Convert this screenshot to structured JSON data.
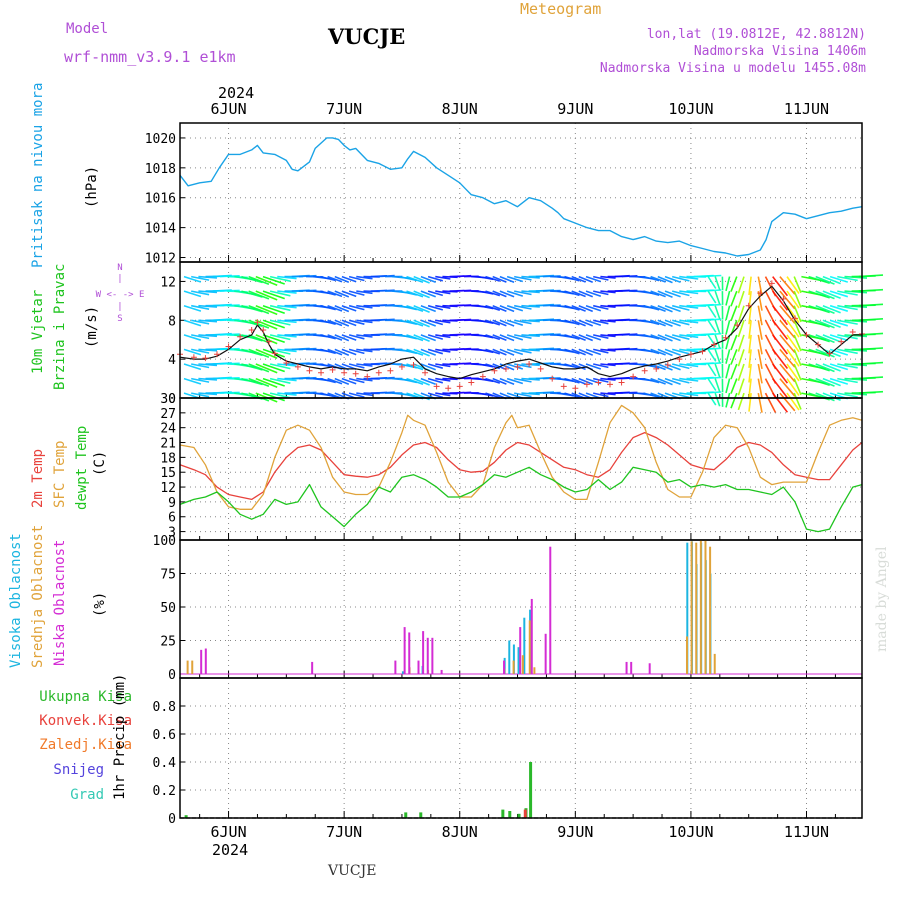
{
  "header": {
    "model_label": "Model",
    "model_value": "wrf-nmm_v3.9.1 e1km",
    "station": "VUCJE",
    "meteogram_label": "Meteogram",
    "lonlat": "lon,lat (19.0812E, 42.8812N)",
    "altitude": "Nadmorska Visina 1406m",
    "model_altitude": "Nadmorska Visina u modelu 1455.08m",
    "year": "2024",
    "footer_station": "VUCJE",
    "credit": "made by Angel"
  },
  "colors": {
    "pressure": "#1aa3e6",
    "temp2m": "#e8423c",
    "sfc": "#e0a33a",
    "dew": "#1fc41f",
    "high_cloud": "#1cb5e0",
    "mid_cloud": "#e0a33a",
    "low_cloud": "#d42cd4",
    "total_rain": "#2ab82a",
    "conv_rain": "#e8423c",
    "frozen": "#f07a2a",
    "snow": "#5544dd",
    "hail": "#34c9b4",
    "wind_speed": "#111111",
    "wind_gust": "#e8423c",
    "label_purple": "#b04fd6"
  },
  "time_axis": {
    "day_labels": [
      "6JUN",
      "7JUN",
      "8JUN",
      "9JUN",
      "10JUN",
      "11JUN"
    ],
    "day_positions": [
      1,
      2,
      3,
      4,
      5,
      6
    ],
    "x_range": [
      0.58,
      6.48
    ]
  },
  "panel_labels": {
    "pressure": [
      "Pritisak na nivou mora",
      "(hPa)"
    ],
    "wind": [
      "10m Vjetar",
      "Brzina i Pravac",
      "(m/s)"
    ],
    "compass": [
      "N",
      "|",
      "W <- -> E",
      "|",
      "S"
    ],
    "temp": [
      "2m Temp",
      "SFC Temp",
      "dewpt Temp",
      "(C)"
    ],
    "cloud": [
      "Visoka Oblacnost",
      "Srednja Oblacnost",
      "Niska Oblacnost",
      "(%)"
    ],
    "precip": [
      "Ukupna Kisa",
      "Konvek.Kisa",
      "Zaledj.Kisa",
      "Snijeg",
      "Grad",
      "1hr Precip (mm)"
    ]
  },
  "chart_data": [
    {
      "type": "line",
      "panel": "pressure",
      "ylabel": "(hPa)",
      "ylim": [
        1011.7,
        1021
      ],
      "yticks": [
        1012,
        1014,
        1016,
        1018,
        1020
      ],
      "grid": true,
      "series": [
        {
          "name": "Pritisak na nivou mora",
          "x": [
            0.58,
            0.65,
            0.75,
            0.85,
            0.92,
            1.0,
            1.1,
            1.2,
            1.25,
            1.3,
            1.4,
            1.5,
            1.55,
            1.6,
            1.7,
            1.75,
            1.85,
            1.9,
            1.95,
            2.0,
            2.05,
            2.1,
            2.2,
            2.3,
            2.4,
            2.5,
            2.55,
            2.6,
            2.7,
            2.8,
            2.9,
            3.0,
            3.05,
            3.1,
            3.2,
            3.3,
            3.4,
            3.5,
            3.6,
            3.7,
            3.8,
            3.85,
            3.9,
            4.0,
            4.1,
            4.2,
            4.3,
            4.4,
            4.5,
            4.6,
            4.7,
            4.8,
            4.9,
            5.0,
            5.1,
            5.2,
            5.3,
            5.4,
            5.5,
            5.6,
            5.65,
            5.7,
            5.8,
            5.9,
            6.0,
            6.1,
            6.2,
            6.3,
            6.4,
            6.48
          ],
          "values": [
            1017.5,
            1016.8,
            1017.0,
            1017.1,
            1018.0,
            1018.9,
            1018.9,
            1019.2,
            1019.5,
            1019.0,
            1018.9,
            1018.5,
            1017.9,
            1017.8,
            1018.4,
            1019.3,
            1020.0,
            1020.0,
            1019.9,
            1019.5,
            1019.2,
            1019.3,
            1018.5,
            1018.3,
            1017.9,
            1018.0,
            1018.6,
            1019.1,
            1018.7,
            1018.0,
            1017.5,
            1017.0,
            1016.6,
            1016.2,
            1016.0,
            1015.6,
            1015.8,
            1015.4,
            1016.0,
            1015.8,
            1015.3,
            1015.0,
            1014.6,
            1014.3,
            1014.0,
            1013.8,
            1013.8,
            1013.4,
            1013.2,
            1013.4,
            1013.1,
            1013.0,
            1013.1,
            1012.8,
            1012.6,
            1012.4,
            1012.3,
            1012.1,
            1012.2,
            1012.5,
            1013.2,
            1014.4,
            1015.0,
            1014.9,
            1014.6,
            1014.8,
            1015.0,
            1015.1,
            1015.3,
            1015.4
          ]
        }
      ]
    },
    {
      "type": "line",
      "panel": "wind",
      "ylabel": "(m/s)",
      "ylim": [
        0,
        14
      ],
      "yticks": [
        0,
        4,
        8,
        12
      ],
      "grid": true,
      "series": [
        {
          "name": "speed",
          "x": [
            0.58,
            0.7,
            0.8,
            0.9,
            1.0,
            1.1,
            1.2,
            1.25,
            1.3,
            1.35,
            1.4,
            1.5,
            1.6,
            1.7,
            1.8,
            1.9,
            2.0,
            2.1,
            2.2,
            2.3,
            2.4,
            2.5,
            2.6,
            2.7,
            2.8,
            2.9,
            3.0,
            3.1,
            3.2,
            3.3,
            3.4,
            3.5,
            3.6,
            3.7,
            3.8,
            3.9,
            4.0,
            4.1,
            4.2,
            4.3,
            4.4,
            4.5,
            4.6,
            4.7,
            4.8,
            4.9,
            5.0,
            5.1,
            5.2,
            5.3,
            5.4,
            5.5,
            5.6,
            5.7,
            5.8,
            5.9,
            6.0,
            6.1,
            6.2,
            6.3,
            6.4,
            6.48
          ],
          "values": [
            4.2,
            4.0,
            4.0,
            4.3,
            5.0,
            6.0,
            6.5,
            7.5,
            6.8,
            5.5,
            4.5,
            3.8,
            3.5,
            3.2,
            3.0,
            3.2,
            3.0,
            3.0,
            2.8,
            3.2,
            3.5,
            4.0,
            4.2,
            3.0,
            2.5,
            2.2,
            2.0,
            2.4,
            2.7,
            3.0,
            3.5,
            3.8,
            4.0,
            3.6,
            3.2,
            3.0,
            3.0,
            3.2,
            2.5,
            2.2,
            2.5,
            3.0,
            3.3,
            3.5,
            3.8,
            4.2,
            4.5,
            4.8,
            5.5,
            6.0,
            7.2,
            9.2,
            10.5,
            11.5,
            10.0,
            8.0,
            6.5,
            5.5,
            4.5,
            5.5,
            6.5,
            6.5
          ]
        },
        {
          "name": "gust",
          "x": [
            0.58,
            0.7,
            0.8,
            0.9,
            1.0,
            1.1,
            1.2,
            1.25,
            1.3,
            1.35,
            1.4,
            1.5,
            1.6,
            1.7,
            1.8,
            1.9,
            2.0,
            2.1,
            2.2,
            2.3,
            2.4,
            2.5,
            2.6,
            2.7,
            2.8,
            2.9,
            3.0,
            3.1,
            3.2,
            3.3,
            3.4,
            3.5,
            3.6,
            3.7,
            3.8,
            3.9,
            4.0,
            4.1,
            4.2,
            4.3,
            4.4,
            4.5,
            4.6,
            4.7,
            4.8,
            4.9,
            5.0,
            5.1,
            5.2,
            5.3,
            5.4,
            5.5,
            5.6,
            5.7,
            5.8,
            5.9,
            6.0,
            6.1,
            6.2,
            6.3,
            6.4,
            6.48
          ],
          "values": [
            4.5,
            4.2,
            4.1,
            4.5,
            5.3,
            6.3,
            7.0,
            7.8,
            7.0,
            5.8,
            4.6,
            3.6,
            3.2,
            2.8,
            2.6,
            2.9,
            2.6,
            2.5,
            2.2,
            2.6,
            2.8,
            3.2,
            3.4,
            2.6,
            1.2,
            1.0,
            1.2,
            1.6,
            2.2,
            2.8,
            3.0,
            3.2,
            3.5,
            3.0,
            2.0,
            1.2,
            1.0,
            1.4,
            1.6,
            1.4,
            1.6,
            2.2,
            2.8,
            3.0,
            3.4,
            4.0,
            4.5,
            4.8,
            5.5,
            6.2,
            7.5,
            9.5,
            10.8,
            11.8,
            10.2,
            8.2,
            6.5,
            5.5,
            4.6,
            5.8,
            6.8,
            6.6
          ]
        }
      ]
    },
    {
      "type": "line",
      "panel": "temperature",
      "ylabel": "(C)",
      "ylim": [
        1.3,
        30
      ],
      "yticks": [
        3,
        6,
        9,
        12,
        15,
        18,
        21,
        24,
        27,
        30
      ],
      "grid": true,
      "series": [
        {
          "name": "2m Temp",
          "x": [
            0.58,
            0.7,
            0.8,
            0.9,
            1.0,
            1.1,
            1.2,
            1.3,
            1.4,
            1.5,
            1.6,
            1.7,
            1.8,
            1.9,
            2.0,
            2.1,
            2.2,
            2.3,
            2.4,
            2.5,
            2.6,
            2.7,
            2.8,
            2.9,
            3.0,
            3.1,
            3.2,
            3.3,
            3.4,
            3.5,
            3.6,
            3.7,
            3.8,
            3.9,
            4.0,
            4.1,
            4.2,
            4.3,
            4.4,
            4.5,
            4.6,
            4.7,
            4.8,
            4.9,
            5.0,
            5.1,
            5.2,
            5.3,
            5.4,
            5.5,
            5.6,
            5.7,
            5.8,
            5.9,
            6.0,
            6.1,
            6.2,
            6.3,
            6.4,
            6.48
          ],
          "values": [
            16.5,
            15.5,
            14.5,
            12.0,
            10.5,
            10.0,
            9.5,
            11.0,
            15.0,
            18.0,
            20.0,
            20.5,
            19.5,
            17.0,
            14.5,
            14.2,
            14.0,
            14.5,
            16.0,
            18.5,
            20.5,
            21.0,
            20.0,
            17.5,
            15.5,
            15.0,
            15.2,
            17.0,
            19.5,
            21.0,
            20.5,
            19.0,
            17.5,
            16.0,
            15.5,
            14.5,
            14.0,
            15.5,
            19.0,
            22.0,
            23.0,
            22.0,
            20.5,
            18.5,
            16.5,
            15.8,
            15.5,
            17.5,
            20.0,
            21.0,
            20.5,
            19.0,
            16.5,
            14.5,
            14.0,
            13.5,
            13.5,
            16.5,
            19.5,
            21.0
          ]
        },
        {
          "name": "SFC Temp",
          "x": [
            0.58,
            0.7,
            0.8,
            0.9,
            1.0,
            1.1,
            1.2,
            1.3,
            1.4,
            1.5,
            1.6,
            1.7,
            1.8,
            1.9,
            2.0,
            2.1,
            2.2,
            2.3,
            2.4,
            2.5,
            2.55,
            2.6,
            2.7,
            2.8,
            2.9,
            3.0,
            3.1,
            3.2,
            3.3,
            3.4,
            3.45,
            3.5,
            3.6,
            3.7,
            3.8,
            3.9,
            4.0,
            4.1,
            4.2,
            4.3,
            4.4,
            4.5,
            4.6,
            4.7,
            4.8,
            4.9,
            5.0,
            5.1,
            5.2,
            5.3,
            5.4,
            5.5,
            5.6,
            5.7,
            5.8,
            5.9,
            6.0,
            6.1,
            6.2,
            6.3,
            6.4,
            6.48
          ],
          "values": [
            20.5,
            20.0,
            16.5,
            11.0,
            8.0,
            7.5,
            7.5,
            10.5,
            18.0,
            23.5,
            24.5,
            23.5,
            20.0,
            14.0,
            11.0,
            10.5,
            10.5,
            12.0,
            17.0,
            23.0,
            26.5,
            25.5,
            24.5,
            19.0,
            13.0,
            10.0,
            10.0,
            12.5,
            20.0,
            25.0,
            26.5,
            24.0,
            24.5,
            19.0,
            14.0,
            11.0,
            9.5,
            9.5,
            17.0,
            25.0,
            28.5,
            27.0,
            24.0,
            17.0,
            11.5,
            10.0,
            10.0,
            15.0,
            22.0,
            24.5,
            24.0,
            20.0,
            14.0,
            12.5,
            13.0,
            13.0,
            13.0,
            19.0,
            24.5,
            25.5,
            26.0,
            25.5
          ]
        },
        {
          "name": "dewpt Temp",
          "x": [
            0.58,
            0.7,
            0.8,
            0.9,
            1.0,
            1.1,
            1.2,
            1.3,
            1.4,
            1.5,
            1.6,
            1.7,
            1.8,
            1.9,
            2.0,
            2.1,
            2.2,
            2.3,
            2.4,
            2.5,
            2.6,
            2.7,
            2.8,
            2.9,
            3.0,
            3.1,
            3.2,
            3.3,
            3.4,
            3.5,
            3.6,
            3.7,
            3.8,
            3.9,
            4.0,
            4.1,
            4.2,
            4.3,
            4.4,
            4.5,
            4.6,
            4.7,
            4.8,
            4.9,
            5.0,
            5.1,
            5.2,
            5.3,
            5.4,
            5.5,
            5.6,
            5.7,
            5.8,
            5.9,
            6.0,
            6.1,
            6.2,
            6.3,
            6.4,
            6.48
          ],
          "values": [
            8.5,
            9.5,
            10.0,
            11.0,
            9.0,
            6.5,
            5.5,
            6.5,
            9.5,
            8.5,
            9.0,
            12.5,
            8.0,
            6.0,
            4.0,
            6.5,
            8.5,
            12.0,
            11.0,
            14.0,
            14.5,
            13.5,
            12.0,
            10.0,
            10.0,
            11.0,
            12.5,
            14.5,
            14.0,
            15.0,
            16.0,
            14.5,
            13.5,
            12.0,
            11.0,
            11.5,
            13.5,
            11.5,
            13.0,
            16.0,
            15.5,
            15.0,
            13.0,
            13.5,
            12.0,
            12.5,
            12.0,
            12.5,
            11.5,
            11.5,
            11.0,
            10.5,
            12.0,
            9.0,
            3.5,
            3.0,
            3.5,
            8.0,
            12.0,
            12.5
          ]
        }
      ]
    },
    {
      "type": "bar",
      "panel": "cloud",
      "ylabel": "(%)",
      "ylim": [
        -3,
        100
      ],
      "yticks": [
        0,
        25,
        50,
        75,
        100
      ],
      "grid": true,
      "series": [
        {
          "name": "Visoka Oblacnost",
          "x": [
            2.5,
            2.67,
            3.38,
            3.42,
            3.46,
            3.5,
            3.55,
            3.6,
            4.96,
            5.0,
            5.04,
            5.08,
            5.12,
            5.16
          ],
          "values": [
            2,
            6,
            12,
            25,
            22,
            20,
            42,
            48,
            98,
            99,
            82,
            98,
            85,
            75
          ]
        },
        {
          "name": "Srednja Oblacnost",
          "x": [
            0.62,
            0.66,
            2.54,
            2.7,
            3.36,
            3.44,
            3.52,
            3.58,
            3.62,
            4.94,
            4.98,
            5.02,
            5.06,
            5.1,
            5.14,
            5.18
          ],
          "values": [
            10,
            10,
            5,
            3,
            4,
            10,
            14,
            40,
            5,
            28,
            99,
            98,
            100,
            100,
            95,
            15
          ]
        },
        {
          "name": "Niska Oblacnost",
          "x": [
            0.72,
            0.76,
            1.68,
            2.4,
            2.48,
            2.52,
            2.6,
            2.64,
            2.68,
            2.72,
            2.8,
            3.34,
            3.48,
            3.58,
            3.7,
            3.74,
            4.4,
            4.44,
            4.6
          ],
          "values": [
            18,
            19,
            9,
            10,
            35,
            31,
            10,
            32,
            27,
            27,
            3,
            10,
            35,
            56,
            30,
            95,
            9,
            9,
            8
          ]
        }
      ]
    },
    {
      "type": "bar",
      "panel": "precipitation",
      "ylabel": "1hr Precip (mm)",
      "ylim": [
        0,
        1
      ],
      "yticks": [
        0,
        0.2,
        0.4,
        0.6,
        0.8
      ],
      "grid": true,
      "series": [
        {
          "name": "Ukupna Kisa",
          "x": [
            0.62,
            2.52,
            2.65,
            3.36,
            3.42,
            3.5,
            3.56,
            3.6
          ],
          "values": [
            0.02,
            0.04,
            0.04,
            0.06,
            0.05,
            0.03,
            0.07,
            0.4
          ]
        },
        {
          "name": "Konvek.Kisa",
          "x": [
            3.58
          ],
          "values": [
            0.06
          ]
        }
      ]
    }
  ]
}
